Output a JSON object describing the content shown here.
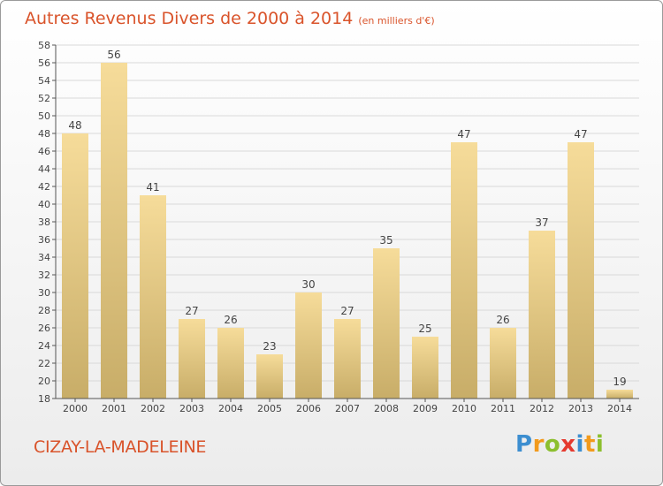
{
  "title": "Autres Revenus Divers de 2000 à 2014",
  "subtitle": "(en milliers d'€)",
  "location": "CIZAY-LA-MADELEINE",
  "logo": {
    "text": "Proxiti",
    "letters": [
      {
        "ch": "P",
        "color": "#3c8ed0"
      },
      {
        "ch": "r",
        "color": "#f29a1c"
      },
      {
        "ch": "o",
        "color": "#8cbf2f"
      },
      {
        "ch": "x",
        "color": "#e53a2f"
      },
      {
        "ch": "i",
        "color": "#3c8ed0"
      },
      {
        "ch": "t",
        "color": "#f29a1c"
      },
      {
        "ch": "i",
        "color": "#8cbf2f"
      }
    ]
  },
  "colors": {
    "title": "#d9532a",
    "bar_light": "#f6dc9a",
    "bar_dark": "#c8ad68",
    "grid": "#d9d9d9",
    "axis": "#555555"
  },
  "chart_data": {
    "type": "bar",
    "categories": [
      "2000",
      "2001",
      "2002",
      "2003",
      "2004",
      "2005",
      "2006",
      "2007",
      "2008",
      "2009",
      "2010",
      "2011",
      "2012",
      "2013",
      "2014"
    ],
    "values": [
      48,
      56,
      41,
      27,
      26,
      23,
      30,
      27,
      35,
      25,
      47,
      26,
      37,
      47,
      19
    ],
    "ylim": [
      18,
      58
    ],
    "yticks": [
      18,
      20,
      22,
      24,
      26,
      28,
      30,
      32,
      34,
      36,
      38,
      40,
      42,
      44,
      46,
      48,
      50,
      52,
      54,
      56,
      58
    ],
    "grid": true,
    "data_labels": true
  }
}
